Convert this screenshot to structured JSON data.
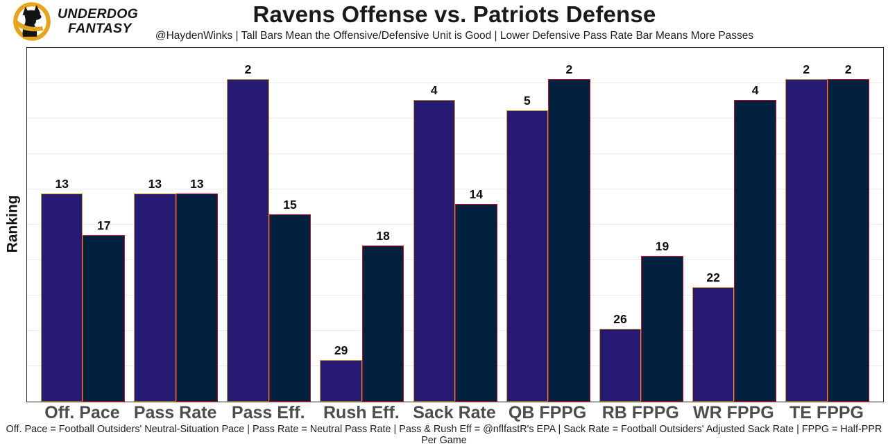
{
  "brand": {
    "line1": "UNDERDOG",
    "line2": "FANTASY",
    "logo_icon": "underdog-dog-icon"
  },
  "header": {
    "title": "Ravens Offense vs. Patriots Defense",
    "subtitle": "@HaydenWinks | Tall Bars Mean the Offensive/Defensive Unit is Good | Lower Defensive Pass Rate Bar Means More Passes"
  },
  "chart_data": {
    "type": "bar",
    "title": "Ravens Offense vs. Patriots Defense",
    "ylabel": "Ranking",
    "xlabel": "",
    "categories": [
      "Off. Pace",
      "Pass Rate",
      "Pass Eff.",
      "Rush Eff.",
      "Sack Rate",
      "QB FPPG",
      "RB FPPG",
      "WR FPPG",
      "TE FPPG"
    ],
    "series": [
      {
        "name": "Ravens Offense",
        "values": [
          13,
          13,
          2,
          29,
          4,
          5,
          26,
          22,
          2
        ],
        "fill": "#261a73",
        "border": "#c8a028"
      },
      {
        "name": "Patriots Defense",
        "values": [
          17,
          13,
          15,
          18,
          14,
          2,
          19,
          4,
          2
        ],
        "fill": "#02213f",
        "border": "#ce0e2d"
      }
    ],
    "value_encoding": "ranking (1 = best); bar height drawn as invert_base minus rank, so tall bars = good unit",
    "invert_base": 33,
    "ylim": [
      0,
      34
    ],
    "grid": true,
    "legend": "none",
    "y_tick_labels": "none"
  },
  "footer": {
    "note": "Off. Pace = Football Outsiders' Neutral-Situation Pace | Pass Rate = Neutral Pass Rate | Pass & Rush Eff = @nflfastR's EPA | Sack Rate = Football Outsiders' Adjusted Sack Rate | FPPG = Half-PPR Per Game"
  },
  "colors": {
    "ravens_purple": "#261a73",
    "ravens_gold": "#c8a028",
    "patriots_navy": "#02213f",
    "patriots_red": "#ce0e2d",
    "logo_gold": "#e3a51e",
    "gridline": "#ebebeb",
    "axis_label_gray": "#4d4d4d"
  }
}
